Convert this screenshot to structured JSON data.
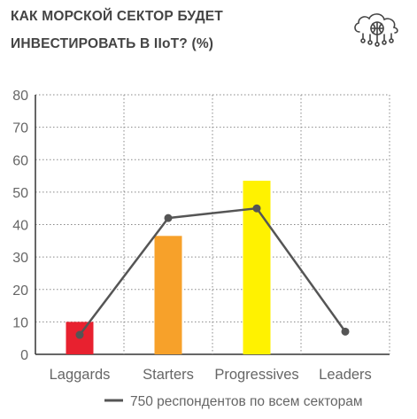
{
  "header": {
    "title_line1": "КАК МОРСКОЙ СЕКТОР БУДЕТ",
    "title_line2": "ИНВЕСТИРОВАТЬ В IIoT? (%)",
    "icon": "cloud-network-icon"
  },
  "chart_data": {
    "type": "bar",
    "categories": [
      "Laggards",
      "Starters",
      "Progressives",
      "Leaders"
    ],
    "series": [
      {
        "type": "bar",
        "values": [
          10,
          36.5,
          53.5,
          null
        ],
        "colors": [
          "#e8212f",
          "#f7a12a",
          "#fff200",
          "#ffffff"
        ]
      },
      {
        "type": "line",
        "name": "750 респондентов по всем секторам",
        "values": [
          6,
          42,
          45,
          7
        ],
        "color": "#555555"
      }
    ],
    "ylim": [
      0,
      80
    ],
    "yticks": [
      "0",
      "10",
      "20",
      "30",
      "40",
      "50",
      "60",
      "70",
      "80"
    ],
    "grid": "dotted",
    "legend_position": "bottom-right"
  }
}
